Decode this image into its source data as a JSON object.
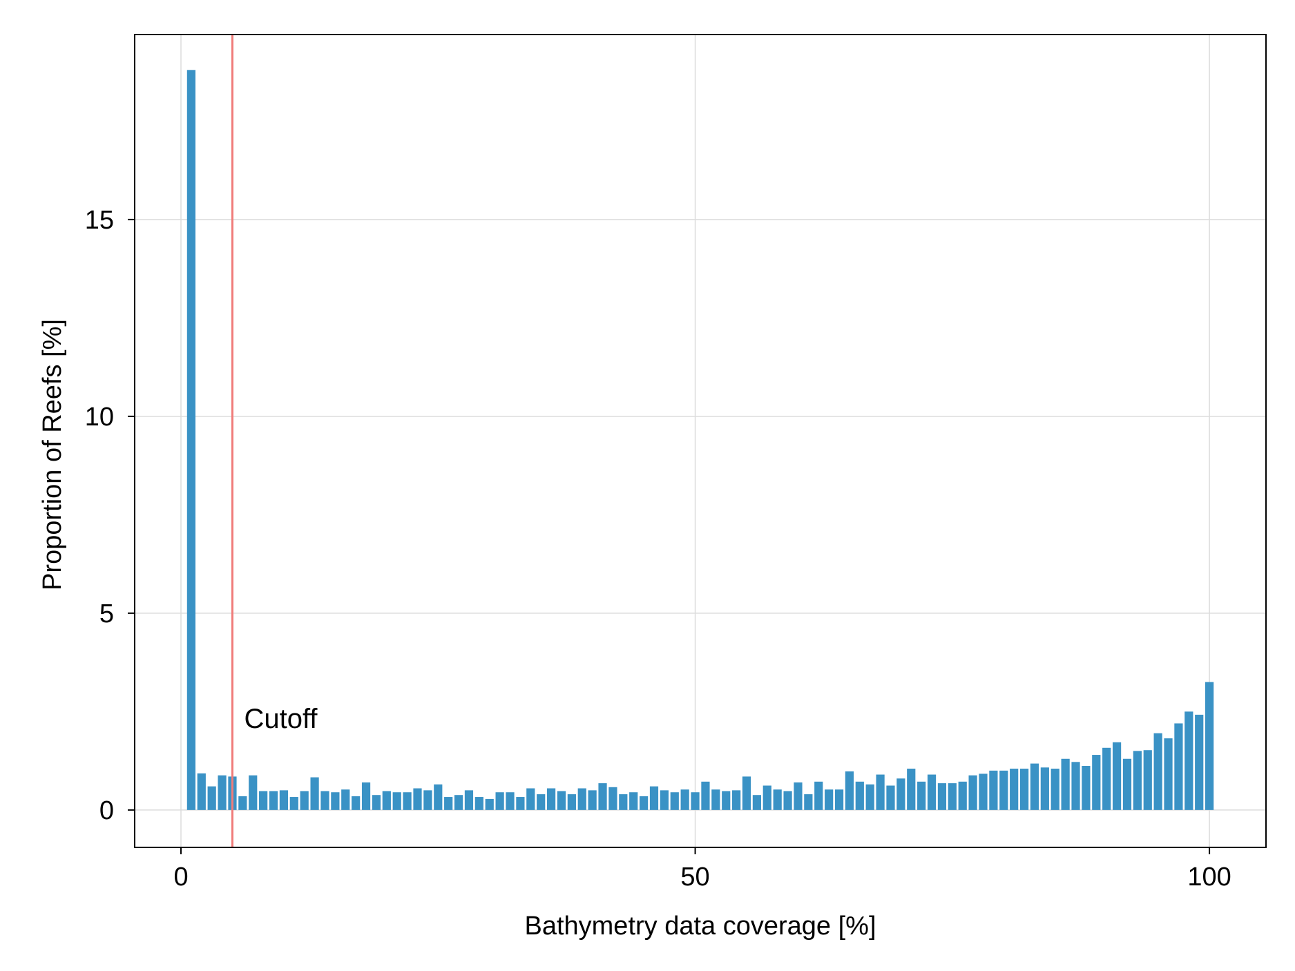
{
  "chart_data": {
    "type": "bar",
    "title": "",
    "xlabel": "Bathymetry data coverage [%]",
    "ylabel": "Proportion of Reefs [%]",
    "xlim": [
      -4.5,
      105.5
    ],
    "ylim": [
      -0.95,
      19.7
    ],
    "x_ticks": [
      0,
      50,
      100
    ],
    "x_tick_labels": [
      "0",
      "50",
      "100"
    ],
    "y_ticks": [
      0,
      5,
      10,
      15
    ],
    "y_tick_labels": [
      "0",
      "5",
      "10",
      "15"
    ],
    "grid": true,
    "legend": "none",
    "bar_width": 0.82,
    "bar_color": "#3a92c5",
    "x": [
      1,
      2,
      3,
      4,
      5,
      6,
      7,
      8,
      9,
      10,
      11,
      12,
      13,
      14,
      15,
      16,
      17,
      18,
      19,
      20,
      21,
      22,
      23,
      24,
      25,
      26,
      27,
      28,
      29,
      30,
      31,
      32,
      33,
      34,
      35,
      36,
      37,
      38,
      39,
      40,
      41,
      42,
      43,
      44,
      45,
      46,
      47,
      48,
      49,
      50,
      51,
      52,
      53,
      54,
      55,
      56,
      57,
      58,
      59,
      60,
      61,
      62,
      63,
      64,
      65,
      66,
      67,
      68,
      69,
      70,
      71,
      72,
      73,
      74,
      75,
      76,
      77,
      78,
      79,
      80,
      81,
      82,
      83,
      84,
      85,
      86,
      87,
      88,
      89,
      90,
      91,
      92,
      93,
      94,
      95,
      96,
      97,
      98,
      99,
      100
    ],
    "values": [
      18.8,
      0.93,
      0.6,
      0.88,
      0.85,
      0.35,
      0.88,
      0.48,
      0.48,
      0.5,
      0.33,
      0.48,
      0.83,
      0.48,
      0.45,
      0.52,
      0.35,
      0.7,
      0.38,
      0.48,
      0.45,
      0.45,
      0.55,
      0.5,
      0.65,
      0.33,
      0.38,
      0.5,
      0.33,
      0.28,
      0.45,
      0.45,
      0.33,
      0.55,
      0.4,
      0.55,
      0.48,
      0.4,
      0.55,
      0.5,
      0.68,
      0.58,
      0.4,
      0.45,
      0.35,
      0.6,
      0.5,
      0.45,
      0.52,
      0.45,
      0.72,
      0.52,
      0.48,
      0.5,
      0.85,
      0.38,
      0.62,
      0.52,
      0.48,
      0.7,
      0.4,
      0.72,
      0.52,
      0.52,
      0.98,
      0.72,
      0.65,
      0.9,
      0.62,
      0.8,
      1.05,
      0.72,
      0.9,
      0.68,
      0.68,
      0.72,
      0.88,
      0.92,
      1.0,
      1.0,
      1.05,
      1.05,
      1.18,
      1.08,
      1.05,
      1.3,
      1.22,
      1.12,
      1.4,
      1.58,
      1.72,
      1.3,
      1.5,
      1.52,
      1.95,
      1.82,
      2.2,
      2.5,
      2.42,
      3.25
    ],
    "reference_line": {
      "x": 5,
      "color": "#f07c7a",
      "label": "Cutoff",
      "label_y": 2.3
    }
  },
  "colors": {
    "frame": "#000000",
    "grid": "#dcdcdc",
    "background": "#ffffff"
  }
}
